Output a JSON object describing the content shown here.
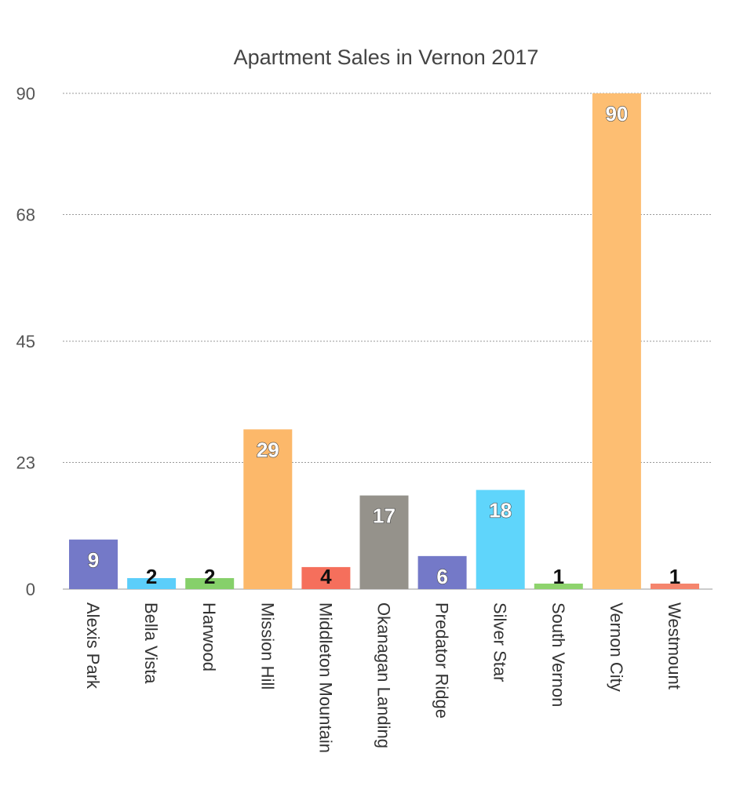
{
  "chart_data": {
    "type": "bar",
    "title": "Apartment Sales in Vernon 2017",
    "xlabel": "",
    "ylabel": "",
    "ylim": [
      0,
      90
    ],
    "y_ticks": [
      "0",
      "23",
      "45",
      "68",
      "90"
    ],
    "grid": true,
    "categories": [
      "Alexis Park",
      "Bella Vista",
      "Harwood",
      "Mission Hill",
      "Middleton Mountain",
      "Okanagan Landing",
      "Predator Ridge",
      "Silver Star",
      "South Vernon",
      "Vernon City",
      "Westmount"
    ],
    "values": [
      9,
      2,
      2,
      29,
      4,
      17,
      6,
      18,
      1,
      90,
      1
    ],
    "data_labels": [
      "9",
      "2",
      "2",
      "29",
      "4",
      "17",
      "6",
      "18",
      "1",
      "90",
      "1"
    ],
    "colors": [
      "#7479c8",
      "#5ccefa",
      "#86d06a",
      "#fcb86a",
      "#f56f5c",
      "#95928b",
      "#7479c8",
      "#5fd5fb",
      "#8ed36d",
      "#fdbe72",
      "#f5856d"
    ]
  }
}
